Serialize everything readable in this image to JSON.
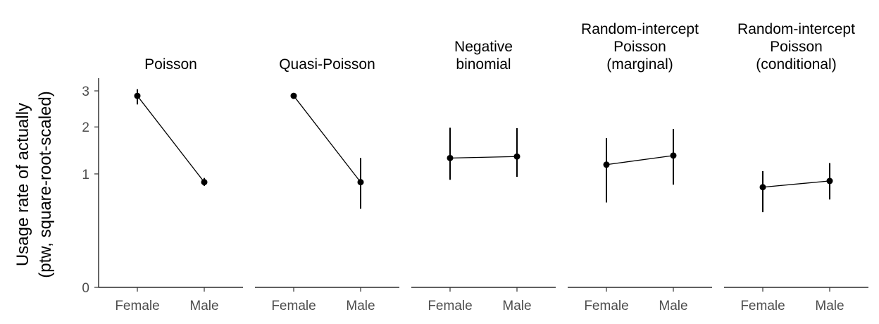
{
  "chart_data": {
    "type": "scatter",
    "ylabel_lines": [
      "Usage rate of actually",
      "(ptw, square-root-scaled)"
    ],
    "y_scale": "sqrt",
    "yticks": [
      0,
      1,
      2,
      3
    ],
    "ylim": [
      0,
      3.4
    ],
    "categories": [
      "Female",
      "Male"
    ],
    "grid": false,
    "legend": "none",
    "panels": [
      {
        "title_lines": [
          "Poisson"
        ],
        "points": [
          {
            "x": "Female",
            "y": 2.85,
            "lo": 2.6,
            "hi": 3.05
          },
          {
            "x": "Male",
            "y": 0.86,
            "lo": 0.8,
            "hi": 0.93
          }
        ]
      },
      {
        "title_lines": [
          "Quasi-Poisson"
        ],
        "points": [
          {
            "x": "Female",
            "y": 2.85,
            "lo": 2.8,
            "hi": 2.9
          },
          {
            "x": "Male",
            "y": 0.86,
            "lo": 0.48,
            "hi": 1.3
          }
        ]
      },
      {
        "title_lines": [
          "Negative",
          "binomial"
        ],
        "points": [
          {
            "x": "Female",
            "y": 1.3,
            "lo": 0.9,
            "hi": 1.98
          },
          {
            "x": "Male",
            "y": 1.33,
            "lo": 0.95,
            "hi": 1.97
          }
        ]
      },
      {
        "title_lines": [
          "Random-intercept",
          "Poisson",
          "(marginal)"
        ],
        "points": [
          {
            "x": "Female",
            "y": 1.17,
            "lo": 0.56,
            "hi": 1.73
          },
          {
            "x": "Male",
            "y": 1.35,
            "lo": 0.82,
            "hi": 1.95
          }
        ]
      },
      {
        "title_lines": [
          "Random-intercept",
          "Poisson",
          "(conditional)"
        ],
        "points": [
          {
            "x": "Female",
            "y": 0.78,
            "lo": 0.44,
            "hi": 1.05
          },
          {
            "x": "Male",
            "y": 0.88,
            "lo": 0.6,
            "hi": 1.2
          }
        ]
      }
    ]
  }
}
